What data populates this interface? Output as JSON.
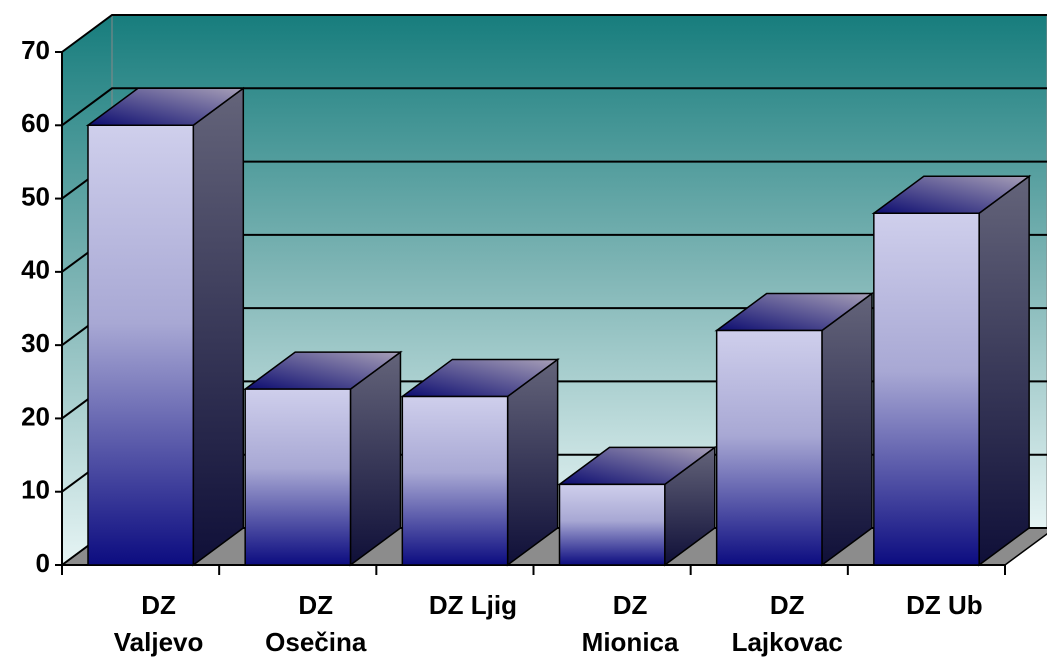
{
  "chart_data": {
    "type": "bar3d",
    "categories": [
      "DZ Valjevo",
      "DZ Osečina",
      "DZ Ljig",
      "DZ Mionica",
      "DZ Lajkovac",
      "DZ Ub"
    ],
    "values": [
      60,
      24,
      23,
      11,
      32,
      48
    ],
    "ylim": [
      0,
      70
    ],
    "yticks": [
      0,
      10,
      20,
      30,
      40,
      50,
      60,
      70
    ],
    "grid": true
  }
}
